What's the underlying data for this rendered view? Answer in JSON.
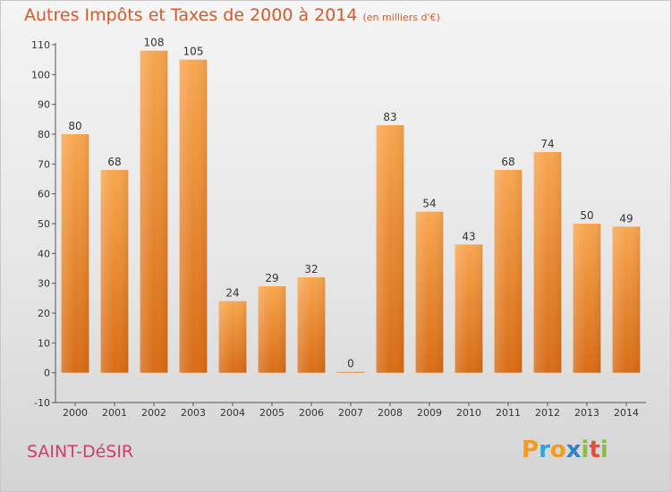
{
  "header": {
    "title": "Autres Impôts et Taxes de 2000 à 2014",
    "unit": "(en milliers d'€)"
  },
  "footer": {
    "commune": "SAINT-DéSIR",
    "brand": "Proxiti",
    "brand_letters": [
      {
        "ch": "P",
        "color": "#f29c1f"
      },
      {
        "ch": "r",
        "color": "#3aa0d8"
      },
      {
        "ch": "o",
        "color": "#f29c1f"
      },
      {
        "ch": "x",
        "color": "#2f7fc6"
      },
      {
        "ch": "i",
        "color": "#8cbf3f"
      },
      {
        "ch": "t",
        "color": "#e64b3c"
      },
      {
        "ch": "i",
        "color": "#8cbf3f"
      }
    ]
  },
  "colors": {
    "bar_top": "#f8a64f",
    "bar_bottom": "#d86c16",
    "title": "#d35a2a",
    "commune": "#cc3f6a"
  },
  "chart_data": {
    "type": "bar",
    "title": "Autres Impôts et Taxes de 2000 à 2014",
    "subtitle": "(en milliers d'€)",
    "categories": [
      "2000",
      "2001",
      "2002",
      "2003",
      "2004",
      "2005",
      "2006",
      "2007",
      "2008",
      "2009",
      "2010",
      "2011",
      "2012",
      "2013",
      "2014"
    ],
    "values": [
      80,
      68,
      108,
      105,
      24,
      29,
      32,
      0,
      83,
      54,
      43,
      68,
      74,
      50,
      49
    ],
    "ylim": [
      -10,
      110
    ],
    "yticks": [
      -10,
      0,
      10,
      20,
      30,
      40,
      50,
      60,
      70,
      80,
      90,
      100,
      110
    ],
    "grid": false,
    "legend": "none"
  }
}
